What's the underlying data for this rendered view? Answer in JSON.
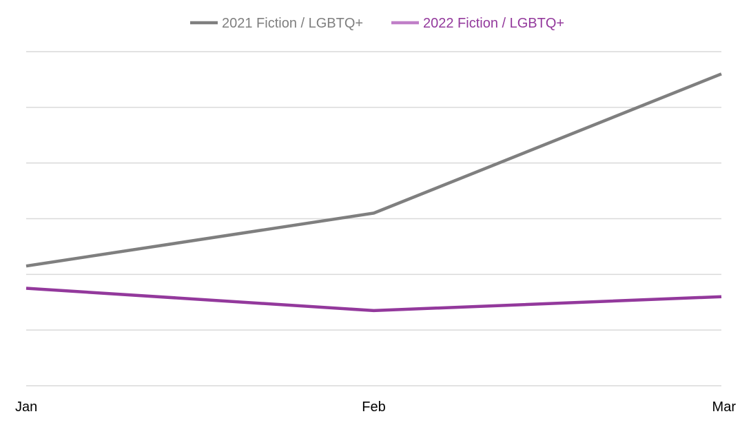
{
  "chart_data": {
    "type": "line",
    "categories": [
      "Jan",
      "Feb",
      "Mar"
    ],
    "series": [
      {
        "name": "2021 Fiction / LGBTQ+",
        "values": [
          2.15,
          3.1,
          5.6
        ],
        "color": "#7f7f7f",
        "legend_text_color": "#7f7f7f"
      },
      {
        "name": "2022 Fiction / LGBTQ+",
        "values": [
          1.75,
          1.35,
          1.6
        ],
        "color": "#93399c",
        "legend_text_color": "#93399c"
      }
    ],
    "ylim": [
      0,
      6
    ],
    "y_gridlines": [
      0,
      1,
      2,
      3,
      4,
      5,
      6
    ],
    "y_tick_labels_shown": false,
    "grid": true,
    "legend_position": "top-center",
    "title": "",
    "xlabel": "",
    "ylabel": ""
  }
}
